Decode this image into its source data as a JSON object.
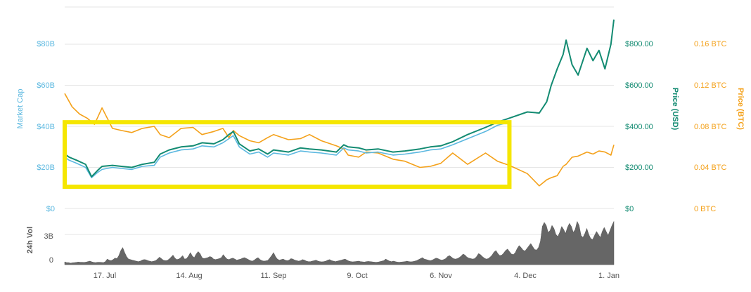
{
  "chart_data": {
    "type": "line",
    "x_tick_labels": [
      "17. Jul",
      "14. Aug",
      "11. Sep",
      "9. Oct",
      "6. Nov",
      "4. Dec",
      "1. Jan"
    ],
    "axes": {
      "market_cap": {
        "title": "Market Cap",
        "ticks": [
          "$0",
          "$20B",
          "$40B",
          "$60B",
          "$80B"
        ],
        "range": [
          0,
          80000000000
        ]
      },
      "price_usd": {
        "title": "Price (USD)",
        "ticks": [
          "$0",
          "$200.00",
          "$400.00",
          "$600.00",
          "$800.00"
        ],
        "range": [
          0,
          800
        ]
      },
      "price_btc": {
        "title": "Price (BTC)",
        "ticks": [
          "0 BTC",
          "0.04 BTC",
          "0.08 BTC",
          "0.12 BTC",
          "0.16 BTC"
        ],
        "range": [
          0,
          0.16
        ]
      },
      "volume": {
        "title": "24h Vol",
        "ticks": [
          "0",
          "3B"
        ],
        "range": [
          0,
          3000000000
        ]
      }
    },
    "series": [
      {
        "name": "Market Cap",
        "color": "#5bb8e0",
        "x": [
          0,
          3,
          8,
          14,
          18,
          22,
          25,
          32,
          38,
          45,
          52,
          60,
          64,
          70,
          78,
          86,
          92,
          100,
          106,
          110,
          113,
          117,
          124,
          130,
          136,
          140,
          150,
          158,
          164,
          172,
          182,
          187,
          190,
          197,
          202,
          210,
          220,
          228,
          238,
          245,
          252,
          260,
          270,
          282,
          290,
          298
        ],
        "values": [
          25000000000,
          23500000000,
          22000000000,
          20000000000,
          15000000000,
          17500000000,
          19000000000,
          20000000000,
          19500000000,
          19000000000,
          20500000000,
          21000000000,
          25000000000,
          27000000000,
          28500000000,
          29000000000,
          30500000000,
          30000000000,
          32000000000,
          34000000000,
          35500000000,
          30000000000,
          26500000000,
          27500000000,
          25000000000,
          27000000000,
          26000000000,
          28000000000,
          27500000000,
          27000000000,
          26000000000,
          29500000000,
          28500000000,
          28000000000,
          27000000000,
          27500000000,
          26000000000,
          26500000000,
          27500000000,
          28500000000,
          29000000000,
          31000000000,
          34000000000,
          37500000000,
          40500000000,
          42000000000
        ]
      },
      {
        "name": "Price (USD)",
        "color": "#138b72",
        "x": [
          0,
          3,
          8,
          14,
          18,
          22,
          25,
          32,
          38,
          45,
          52,
          60,
          64,
          70,
          78,
          86,
          92,
          100,
          106,
          110,
          113,
          117,
          124,
          130,
          136,
          140,
          150,
          158,
          164,
          172,
          182,
          187,
          190,
          197,
          202,
          210,
          220,
          228,
          238,
          245,
          252,
          260,
          270,
          282,
          290,
          298,
          310,
          318,
          323,
          326,
          330,
          334,
          336,
          340,
          344,
          350,
          354,
          358,
          362,
          366,
          368
        ],
        "values": [
          265,
          250,
          235,
          215,
          155,
          185,
          205,
          210,
          205,
          200,
          215,
          225,
          265,
          285,
          300,
          305,
          320,
          315,
          335,
          360,
          375,
          315,
          280,
          290,
          265,
          285,
          275,
          295,
          290,
          285,
          275,
          310,
          300,
          295,
          285,
          290,
          275,
          280,
          290,
          300,
          305,
          325,
          360,
          395,
          420,
          440,
          470,
          465,
          520,
          600,
          680,
          750,
          820,
          700,
          650,
          780,
          720,
          770,
          680,
          800,
          920
        ]
      },
      {
        "name": "Price (BTC)",
        "color": "#f4a11a",
        "x": [
          0,
          5,
          10,
          15,
          20,
          25,
          32,
          38,
          45,
          52,
          60,
          64,
          70,
          78,
          86,
          92,
          100,
          106,
          110,
          113,
          117,
          124,
          130,
          136,
          140,
          150,
          158,
          164,
          172,
          182,
          187,
          190,
          197,
          202,
          210,
          220,
          228,
          238,
          245,
          252,
          260,
          270,
          282,
          290,
          298,
          310,
          318,
          323,
          326,
          330,
          334,
          336,
          340,
          344,
          350,
          354,
          358,
          362,
          366,
          368
        ],
        "values": [
          0.112,
          0.099,
          0.092,
          0.088,
          0.082,
          0.098,
          0.078,
          0.076,
          0.074,
          0.078,
          0.08,
          0.072,
          0.069,
          0.078,
          0.079,
          0.072,
          0.075,
          0.078,
          0.069,
          0.076,
          0.071,
          0.066,
          0.064,
          0.069,
          0.072,
          0.067,
          0.068,
          0.072,
          0.066,
          0.061,
          0.058,
          0.052,
          0.05,
          0.055,
          0.054,
          0.048,
          0.046,
          0.04,
          0.041,
          0.044,
          0.054,
          0.043,
          0.054,
          0.046,
          0.042,
          0.034,
          0.022,
          0.028,
          0.03,
          0.032,
          0.041,
          0.043,
          0.05,
          0.051,
          0.055,
          0.053,
          0.056,
          0.055,
          0.052,
          0.062
        ]
      }
    ],
    "highlight_box": {
      "color": "#f5e600",
      "x_range": [
        0,
        298
      ],
      "y_range_usd": [
        220,
        420
      ]
    },
    "volume": {
      "color": "#666666",
      "values": [
        0.28,
        0.2,
        0.2,
        0.15,
        0.18,
        0.2,
        0.22,
        0.26,
        0.24,
        0.24,
        0.22,
        0.25,
        0.3,
        0.35,
        0.28,
        0.22,
        0.2,
        0.24,
        0.24,
        0.22,
        0.2,
        0.3,
        0.55,
        0.45,
        0.4,
        0.5,
        0.65,
        0.6,
        0.9,
        1.4,
        1.7,
        1.2,
        0.8,
        0.55,
        0.5,
        0.45,
        0.4,
        0.35,
        0.3,
        0.34,
        0.45,
        0.5,
        0.48,
        0.4,
        0.34,
        0.3,
        0.34,
        0.4,
        0.55,
        0.75,
        0.6,
        0.45,
        0.4,
        0.42,
        0.55,
        0.75,
        0.95,
        0.65,
        0.5,
        0.55,
        0.7,
        0.9,
        0.55,
        0.6,
        0.85,
        1.2,
        0.85,
        0.7,
        1.05,
        1.3,
        1.1,
        0.7,
        0.6,
        0.65,
        0.7,
        0.8,
        0.75,
        0.55,
        0.5,
        0.55,
        0.6,
        0.7,
        1.0,
        0.75,
        0.55,
        0.5,
        0.6,
        0.65,
        0.55,
        0.45,
        0.5,
        0.55,
        0.65,
        0.7,
        0.6,
        0.5,
        0.4,
        0.35,
        0.45,
        0.6,
        0.7,
        0.5,
        0.4,
        0.35,
        0.38,
        0.42,
        0.65,
        0.9,
        1.2,
        0.8,
        0.55,
        0.45,
        0.5,
        0.55,
        0.45,
        0.4,
        0.45,
        0.6,
        0.55,
        0.45,
        0.4,
        0.35,
        0.4,
        0.5,
        0.45,
        0.35,
        0.3,
        0.3,
        0.35,
        0.4,
        0.45,
        0.35,
        0.3,
        0.28,
        0.3,
        0.35,
        0.45,
        0.5,
        0.4,
        0.35,
        0.3,
        0.35,
        0.4,
        0.45,
        0.5,
        0.55,
        0.45,
        0.35,
        0.3,
        0.28,
        0.3,
        0.32,
        0.35,
        0.3,
        0.28,
        0.26,
        0.3,
        0.32,
        0.3,
        0.28,
        0.25,
        0.24,
        0.25,
        0.3,
        0.35,
        0.4,
        0.55,
        0.45,
        0.35,
        0.3,
        0.35,
        0.3,
        0.25,
        0.24,
        0.26,
        0.28,
        0.3,
        0.35,
        0.3,
        0.28,
        0.3,
        0.35,
        0.4,
        0.5,
        0.6,
        0.7,
        0.55,
        0.5,
        0.45,
        0.4,
        0.45,
        0.55,
        0.65,
        0.6,
        0.5,
        0.45,
        0.5,
        0.6,
        0.8,
        0.9,
        0.75,
        0.6,
        0.55,
        0.6,
        0.7,
        0.85,
        1.05,
        0.95,
        0.75,
        0.65,
        0.6,
        0.55,
        0.6,
        0.8,
        1.1,
        1.0,
        0.8,
        0.65,
        0.55,
        0.6,
        0.75,
        0.95,
        1.25,
        1.4,
        1.1,
        0.9,
        0.95,
        1.15,
        1.4,
        1.55,
        1.3,
        1.05,
        1.0,
        1.2,
        1.6,
        1.9,
        1.7,
        1.45,
        1.35,
        1.6,
        1.85,
        2.1,
        1.8,
        1.5,
        1.45,
        1.7,
        2.3,
        3.8,
        4.2,
        3.9,
        3.2,
        3.4,
        3.9,
        3.6,
        3.0,
        2.8,
        3.2,
        3.8,
        3.5,
        3.1,
        3.7,
        4.1,
        3.8,
        3.2,
        3.5,
        4.3,
        3.9,
        2.9,
        2.7,
        3.1,
        3.6,
        3.0,
        2.6,
        2.5,
        2.9,
        3.3,
        3.0,
        2.7,
        3.3,
        3.7,
        3.3,
        2.9,
        3.4,
        3.9,
        4.3
      ]
    }
  }
}
